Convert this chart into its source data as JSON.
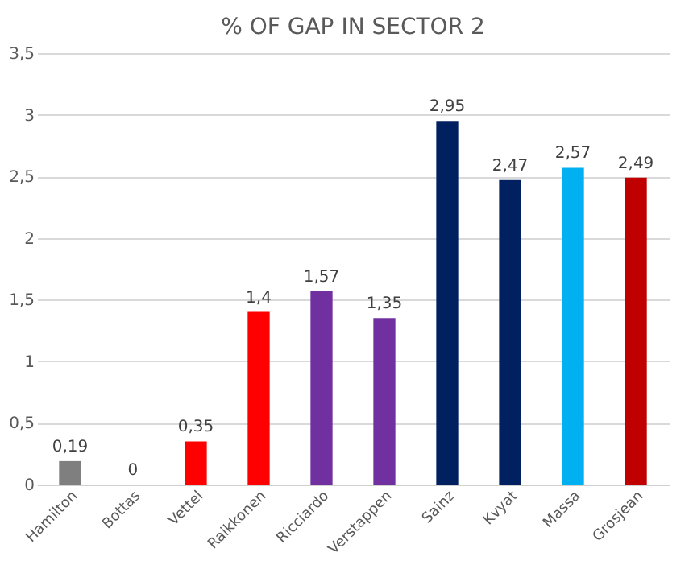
{
  "chart_data": {
    "type": "bar",
    "title": "% OF GAP IN SECTOR 2",
    "categories": [
      "Hamilton",
      "Bottas",
      "Vettel",
      "Raikkonen",
      "Ricciardo",
      "Verstappen",
      "Sainz",
      "Kvyat",
      "Massa",
      "Grosjean"
    ],
    "values": [
      0.19,
      0,
      0.35,
      1.4,
      1.57,
      1.35,
      2.95,
      2.47,
      2.57,
      2.49
    ],
    "value_labels": [
      "0,19",
      "0",
      "0,35",
      "1,4",
      "1,57",
      "1,35",
      "2,95",
      "2,47",
      "2,57",
      "2,49"
    ],
    "colors": [
      "#7f7f7f",
      "#7f7f7f",
      "#ff0000",
      "#ff0000",
      "#7030a0",
      "#7030a0",
      "#002060",
      "#002060",
      "#00b0f0",
      "#c00000"
    ],
    "ylim": [
      0,
      3.5
    ],
    "yticks": [
      0,
      {
        "value": 0.5,
        "label": "0,5"
      },
      1,
      {
        "value": 1.5,
        "label": "1,5"
      },
      2,
      {
        "value": 2.5,
        "label": "2,5"
      },
      3,
      {
        "value": 3.5,
        "label": "3,5"
      }
    ],
    "grid": "y"
  }
}
